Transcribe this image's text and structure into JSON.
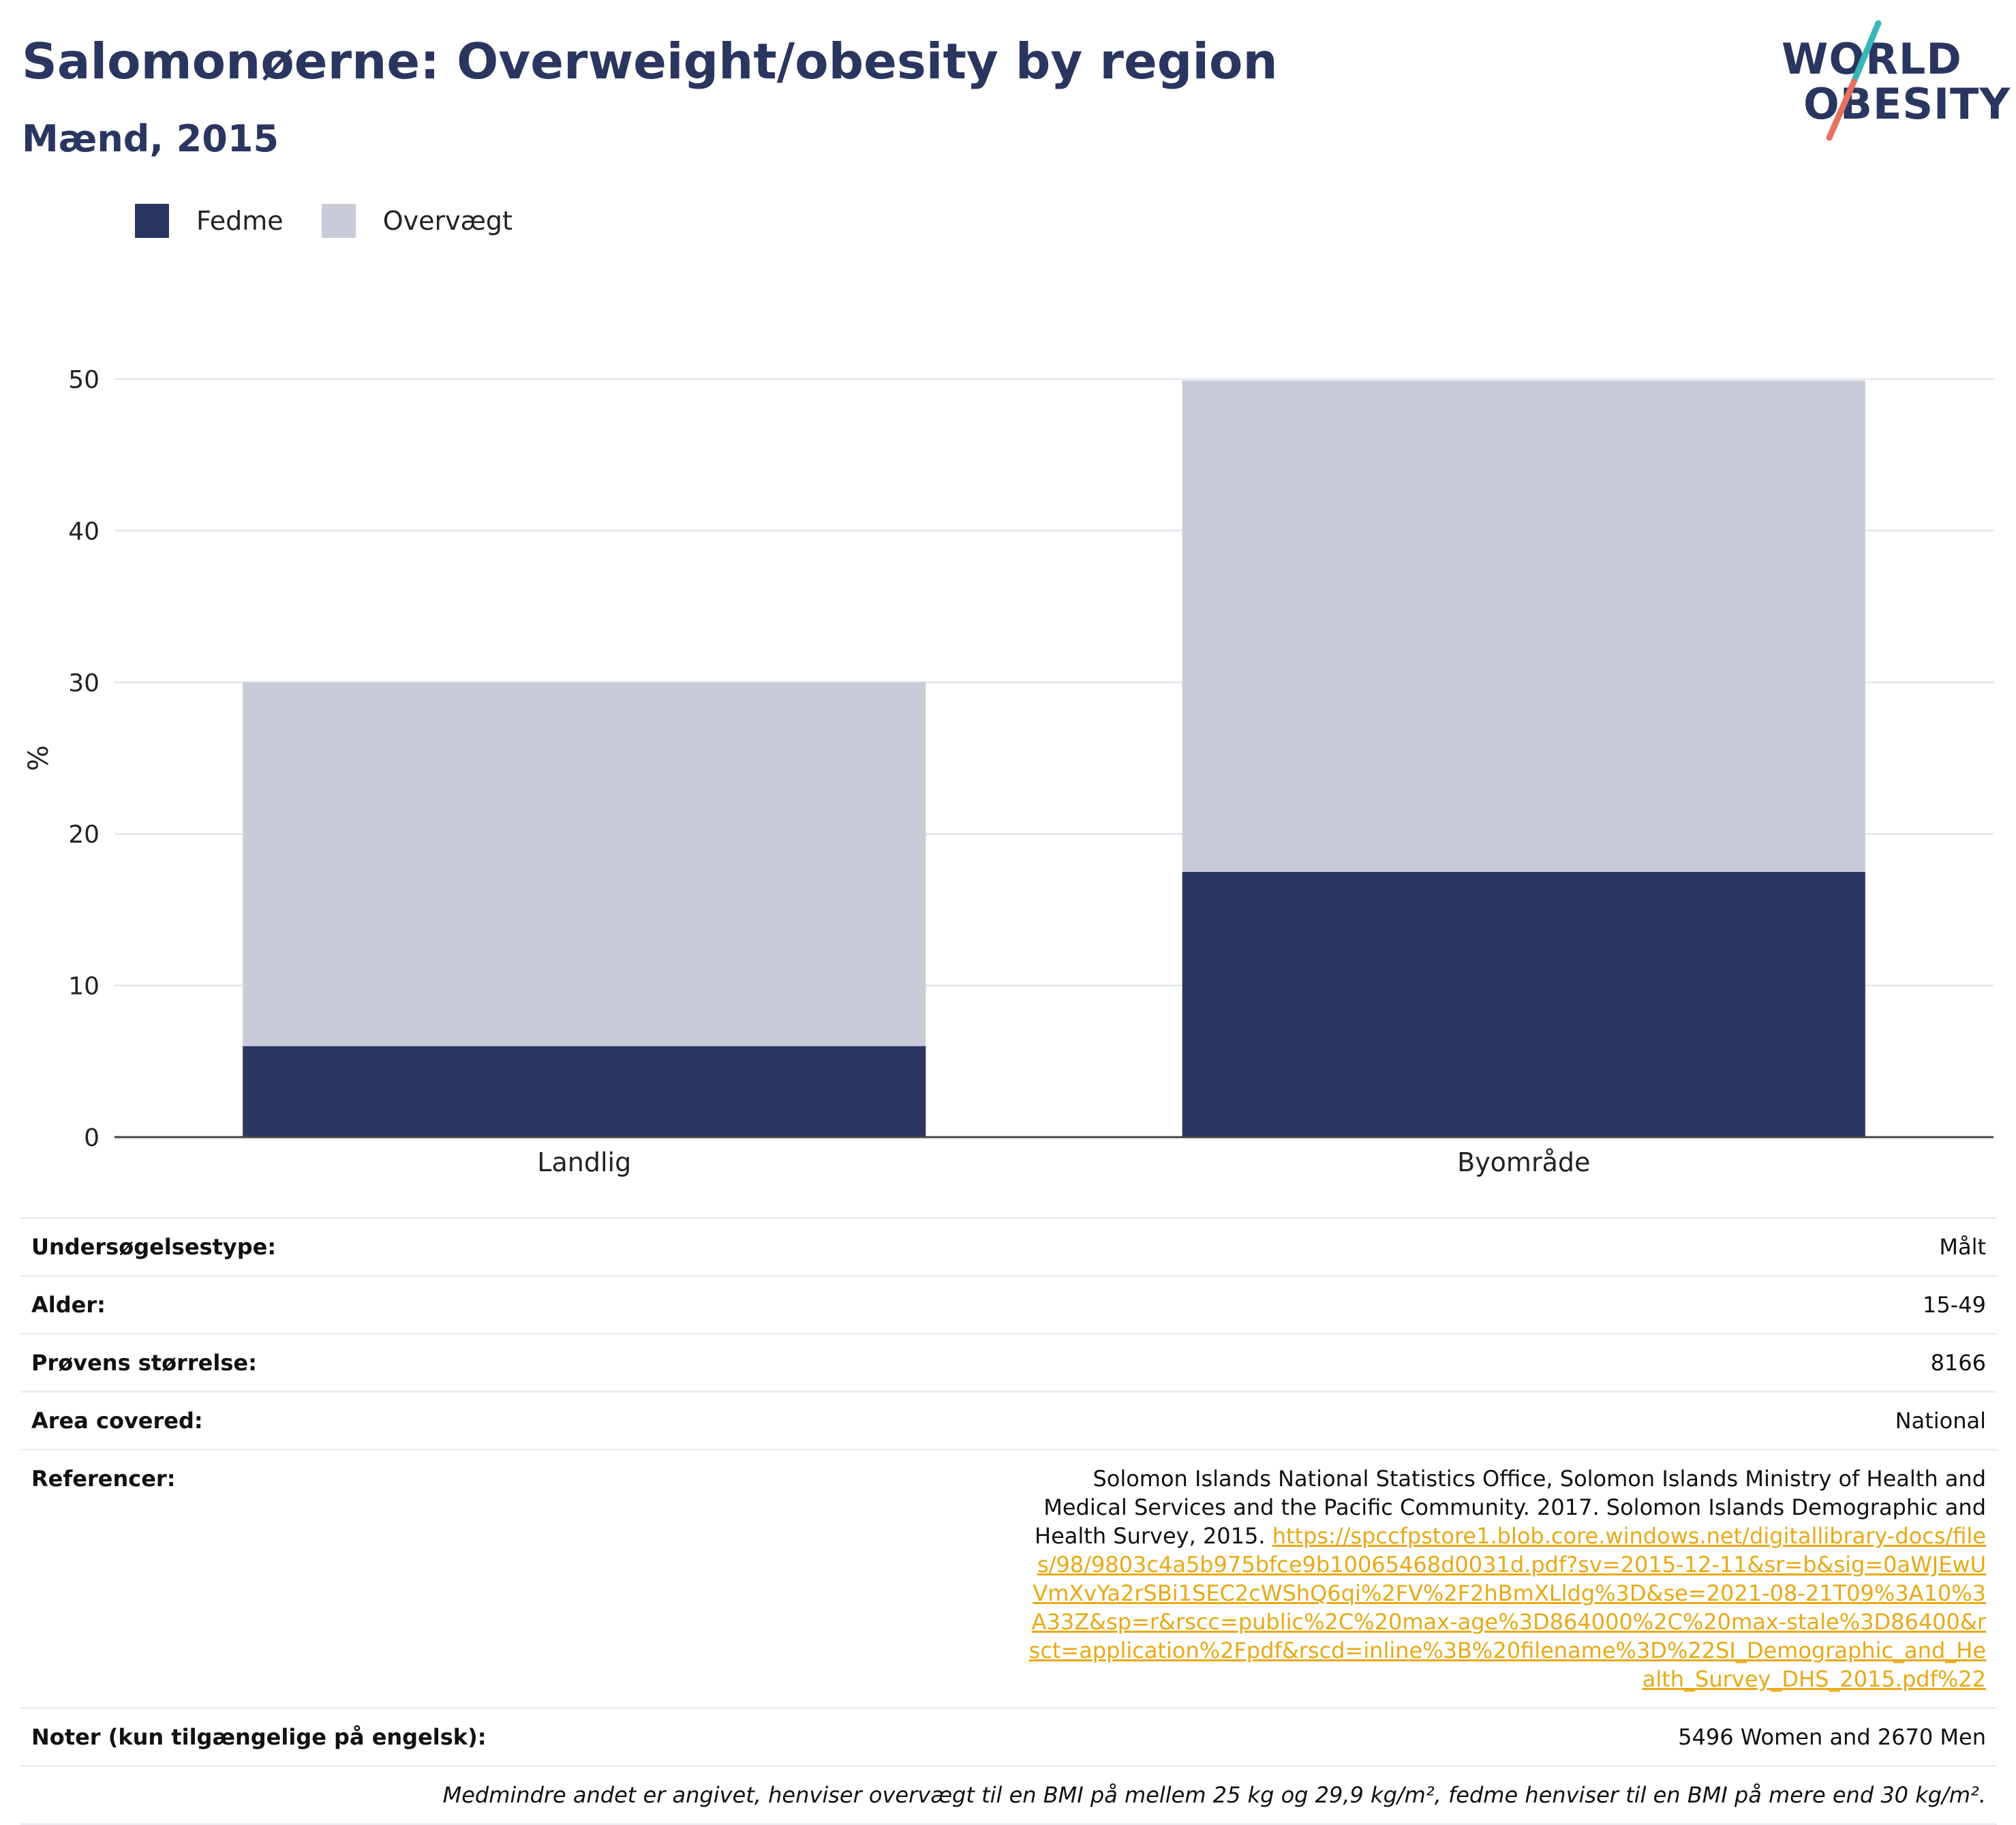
{
  "header": {
    "title": "Salomonøerne: Overweight/obesity by region",
    "subtitle": "Mænd, 2015"
  },
  "logo": {
    "line1": "WORLD",
    "line2": "OBESITY",
    "accent_colors": [
      "#3ab5b8",
      "#e8705e"
    ]
  },
  "legend": [
    {
      "label": "Fedme",
      "color": "#2a3662"
    },
    {
      "label": "Overvægt",
      "color": "#c9ccd8"
    }
  ],
  "chart_data": {
    "type": "bar",
    "stacked": true,
    "categories": [
      "Landlig",
      "Byområde"
    ],
    "series": [
      {
        "name": "Fedme",
        "values": [
          6.0,
          17.5
        ],
        "color": "#2a3662"
      },
      {
        "name": "Overvægt",
        "values": [
          24.0,
          32.4
        ],
        "color": "#c9ccd8"
      }
    ],
    "ylabel": "%",
    "ylim": [
      0,
      50
    ],
    "yticks": [
      0,
      10,
      20,
      30,
      40,
      50
    ],
    "grid": true,
    "legend_position": "top-left"
  },
  "info": {
    "survey_type_label": "Undersøgelsestype:",
    "survey_type_value": "Målt",
    "age_label": "Alder:",
    "age_value": "15-49",
    "sample_label": "Prøvens størrelse:",
    "sample_value": "8166",
    "area_label": "Area covered:",
    "area_value": "National",
    "references_label": "Referencer:",
    "references_text": "Solomon Islands National Statistics Office, Solomon Islands Ministry of Health and Medical Services and the Pacific Community. 2017. Solomon Islands Demographic and Health Survey, 2015.",
    "references_link": "https://spccfpstore1.blob.core.windows.net/digitallibrary-docs/files/98/9803c4a5b975bfce9b10065468d0031d.pdf?sv=2015-12-11&sr=b&sig=0aWJEwUVmXvYa2rSBi1SEC2cWShQ6qi%2FV%2F2hBmXLldg%3D&se=2021-08-21T09%3A10%3A33Z&sp=r&rscc=public%2C%20max-age%3D864000%2C%20max-stale%3D86400&rsct=application%2Fpdf&rscd=inline%3B%20filename%3D%22SI_Demographic_and_Health_Survey_DHS_2015.pdf%22",
    "notes_label": "Noter (kun tilgængelige på engelsk):",
    "notes_value": "5496 Women and 2670 Men",
    "definition": "Medmindre andet er angivet, henviser overvægt til en BMI på mellem 25 kg og 29,9 kg/m², fedme henviser til en BMI på mere end 30 kg/m²."
  }
}
